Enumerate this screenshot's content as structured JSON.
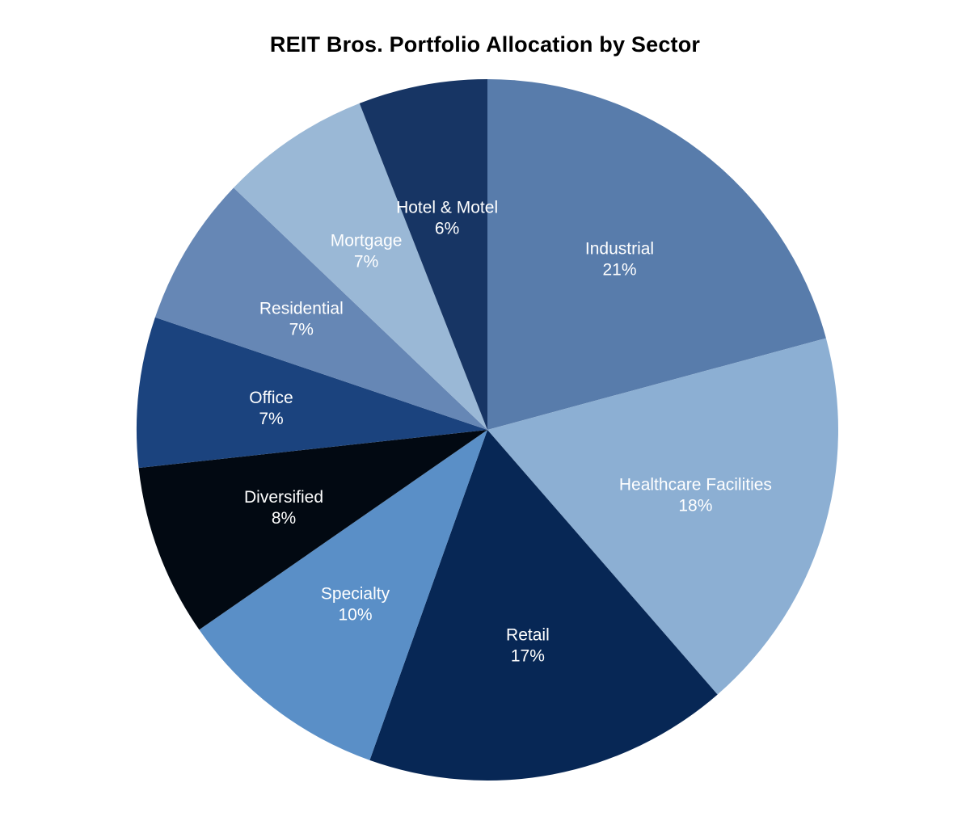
{
  "chart_data": {
    "type": "pie",
    "title": "REIT Bros. Portfolio Allocation by Sector",
    "slices": [
      {
        "label": "Industrial",
        "value": 21,
        "value_label": "21%",
        "color": "#587cab"
      },
      {
        "label": "Healthcare Facilities",
        "value": 18,
        "value_label": "18%",
        "color": "#8cafd3"
      },
      {
        "label": "Retail",
        "value": 17,
        "value_label": "17%",
        "color": "#072755"
      },
      {
        "label": "Specialty",
        "value": 10,
        "value_label": "10%",
        "color": "#5a8fc7"
      },
      {
        "label": "Diversified",
        "value": 8,
        "value_label": "8%",
        "color": "#020912"
      },
      {
        "label": "Office",
        "value": 7,
        "value_label": "7%",
        "color": "#1b437e"
      },
      {
        "label": "Residential",
        "value": 7,
        "value_label": "7%",
        "color": "#6687b5"
      },
      {
        "label": "Mortgage",
        "value": 7,
        "value_label": "7%",
        "color": "#9ab8d6"
      },
      {
        "label": "Hotel & Motel",
        "value": 6,
        "value_label": "6%",
        "color": "#173564"
      }
    ],
    "start_angle": "12 o'clock",
    "direction": "clockwise",
    "legend": "none"
  }
}
